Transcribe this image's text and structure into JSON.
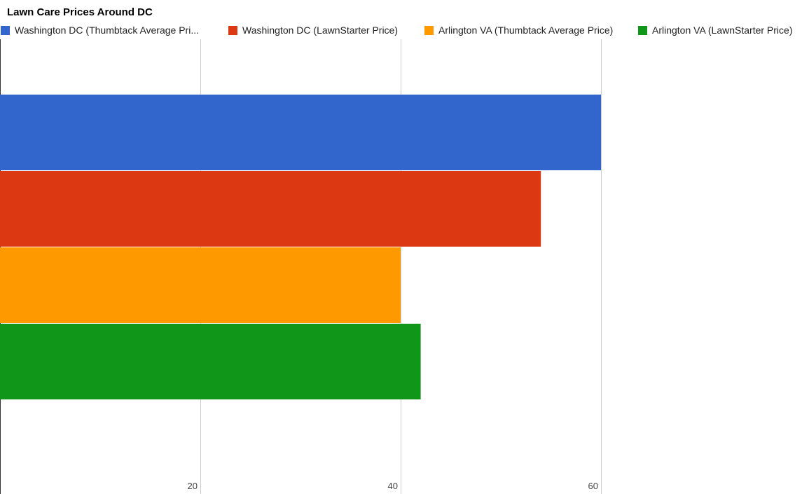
{
  "chart_data": {
    "type": "bar",
    "orientation": "horizontal",
    "title": "Lawn Care Prices Around DC",
    "xlabel": "",
    "ylabel": "",
    "categories": [
      ""
    ],
    "series": [
      {
        "name": "Washington DC (Thumbtack Average Price)",
        "legend_text": "Washington DC (Thumbtack Average Pri...",
        "color": "#3366cc",
        "values": [
          60
        ]
      },
      {
        "name": "Washington DC (LawnStarter Price)",
        "legend_text": "Washington DC (LawnStarter Price)",
        "color": "#dc3912",
        "values": [
          54
        ]
      },
      {
        "name": "Arlington VA (Thumbtack Average Price)",
        "legend_text": "Arlington VA (Thumbtack Average Price)",
        "color": "#ff9900",
        "values": [
          40
        ]
      },
      {
        "name": "Arlington VA (LawnStarter Price)",
        "legend_text": "Arlington VA (LawnStarter Price)",
        "color": "#109618",
        "values": [
          42
        ]
      }
    ],
    "xlim": [
      0,
      80
    ],
    "ticks": [
      20,
      40,
      60
    ],
    "grid": true,
    "legend_position": "top"
  }
}
